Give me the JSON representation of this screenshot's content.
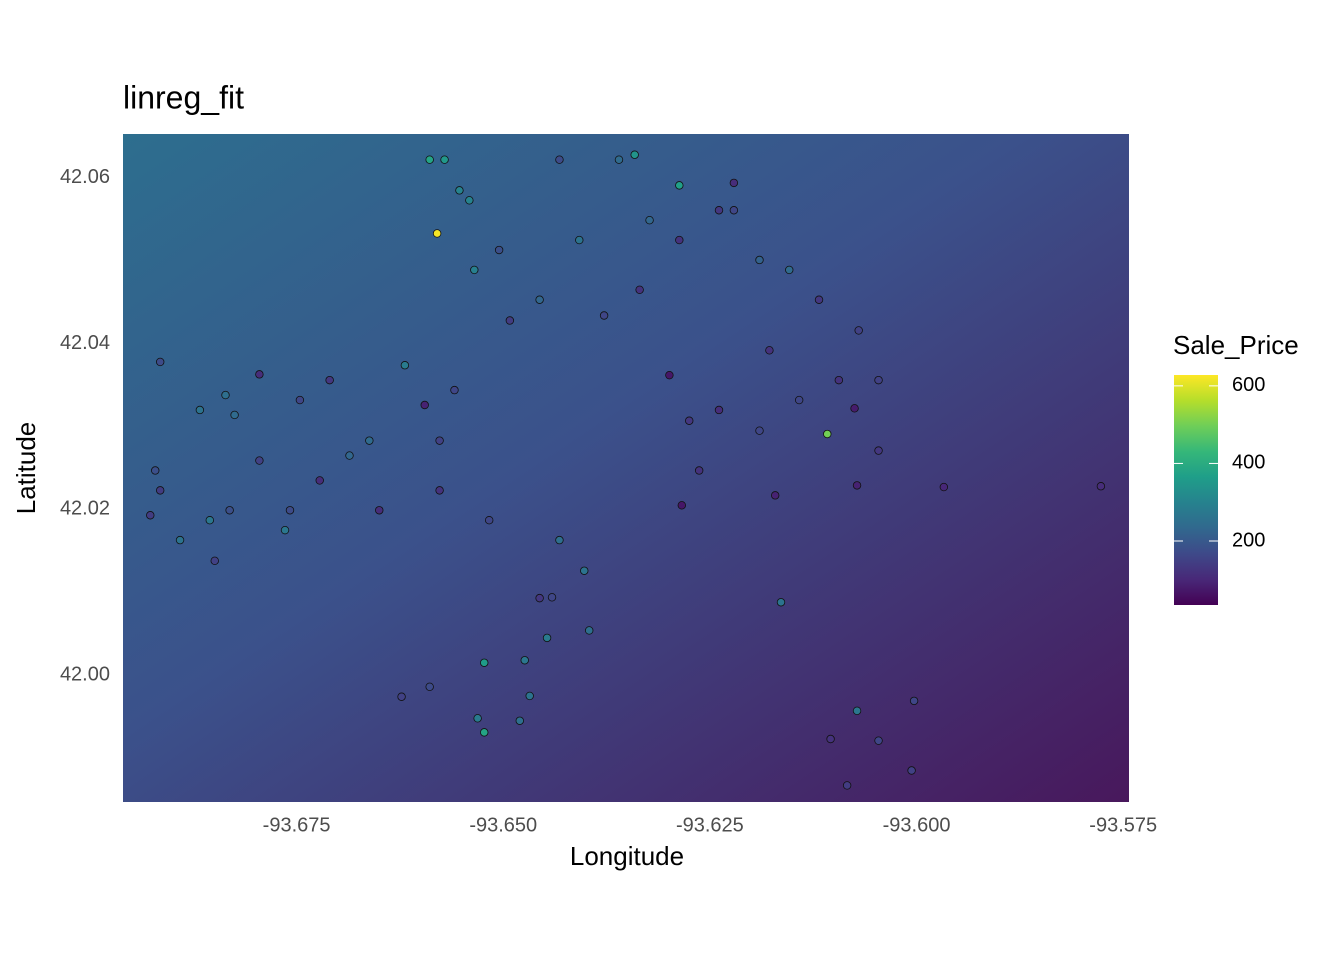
{
  "chart_data": {
    "type": "scatter",
    "title": "linreg_fit",
    "x_label": "Longitude",
    "y_label": "Latitude",
    "xlim": [
      -93.696,
      -93.5743
    ],
    "ylim": [
      41.9847,
      42.0653
    ],
    "xticks": [
      -93.675,
      {
        "value": -93.65,
        "label": "-93.650"
      },
      -93.625,
      {
        "value": -93.6,
        "label": "-93.600"
      },
      -93.575
    ],
    "yticks": [
      {
        "value": 42.0,
        "label": "42.00"
      },
      42.02,
      42.04,
      42.06
    ],
    "grid": false,
    "color_label": "Sale_Price",
    "colormap": "viridis",
    "clim": [
      35,
      628
    ],
    "cticks": [
      200,
      400,
      600
    ],
    "x": [
      -93.658,
      -93.6589,
      -93.6553,
      -93.6523,
      -93.6523,
      -93.6108,
      -93.6287,
      -93.6915,
      -93.6867,
      -93.6855,
      -93.6915,
      -93.6795,
      -93.6746,
      -93.671,
      -93.6662,
      -93.6619,
      -93.6595,
      -93.6577,
      -93.665,
      -93.6758,
      -93.6831,
      -93.6849,
      -93.6517,
      -93.6432,
      -93.6402,
      -93.6456,
      -93.6447,
      -93.6474,
      -93.648,
      -93.6623,
      -93.6589,
      -93.6287,
      -93.6239,
      -93.619,
      -93.6154,
      -93.607,
      -93.6046,
      -93.6299,
      -93.6275,
      -93.6239,
      -93.619,
      -93.6142,
      -93.6094,
      -93.6075,
      -93.6046,
      -93.6072,
      -93.5967,
      -93.5777,
      -93.6171,
      -93.6164,
      -93.6284,
      -93.6263,
      -93.6072,
      -93.6046,
      -93.6006,
      -93.6104,
      -93.6084,
      -93.6003,
      -93.6408,
      -93.6432,
      -93.636,
      -93.6341,
      -93.6492,
      -93.6456,
      -93.6378,
      -93.6335,
      -93.6505,
      -93.6535,
      -93.6571,
      -93.6541,
      -93.6221,
      -93.6118,
      -93.6221,
      -93.6178,
      -93.6323,
      -93.6577,
      -93.6559,
      -93.6686,
      -93.6764,
      -93.6891,
      -93.6921,
      -93.6927,
      -93.6795,
      -93.6825,
      -93.6836,
      -93.6722,
      -93.6396,
      -93.6441,
      -93.6468,
      -93.6531
    ],
    "y": [
      42.0533,
      42.0622,
      42.0585,
      41.9931,
      42.0015,
      42.0291,
      42.0591,
      42.0378,
      42.032,
      42.0187,
      42.0223,
      42.0363,
      42.0332,
      42.0356,
      42.0283,
      42.0374,
      42.0326,
      42.0223,
      42.0199,
      42.0199,
      42.0199,
      42.0138,
      42.0187,
      42.0163,
      42.0126,
      42.0093,
      42.0045,
      42.0018,
      41.9945,
      41.9974,
      41.9986,
      42.0525,
      42.0561,
      42.0501,
      42.0489,
      42.0416,
      42.0356,
      42.0362,
      42.0307,
      42.032,
      42.0295,
      42.0332,
      42.0356,
      42.0322,
      42.0271,
      42.0229,
      42.0227,
      42.0228,
      42.0217,
      42.0088,
      42.0205,
      42.0247,
      41.9957,
      41.9921,
      41.9885,
      41.9923,
      41.9867,
      41.9969,
      42.0525,
      42.0622,
      42.0622,
      42.0628,
      42.0428,
      42.0453,
      42.0434,
      42.0465,
      42.0513,
      42.0489,
      42.0622,
      42.0573,
      42.0561,
      42.0453,
      42.0594,
      42.0392,
      42.0549,
      42.0283,
      42.0344,
      42.0265,
      42.0175,
      42.0163,
      42.0247,
      42.0193,
      42.0259,
      42.0314,
      42.0338,
      42.0235,
      42.0054,
      42.0094,
      41.9975,
      41.9948
    ],
    "color_values": [
      620,
      380,
      300,
      380,
      360,
      500,
      370,
      170,
      260,
      270,
      140,
      110,
      160,
      130,
      240,
      280,
      90,
      120,
      110,
      170,
      180,
      150,
      160,
      250,
      260,
      130,
      280,
      270,
      250,
      150,
      170,
      120,
      130,
      220,
      240,
      150,
      150,
      70,
      130,
      110,
      160,
      160,
      120,
      80,
      130,
      90,
      100,
      110,
      90,
      260,
      70,
      120,
      270,
      160,
      150,
      120,
      140,
      160,
      260,
      170,
      240,
      340,
      140,
      230,
      160,
      120,
      180,
      290,
      350,
      300,
      160,
      130,
      110,
      120,
      230,
      150,
      160,
      230,
      270,
      260,
      180,
      140,
      150,
      240,
      250,
      110,
      250,
      160,
      260,
      280
    ]
  }
}
